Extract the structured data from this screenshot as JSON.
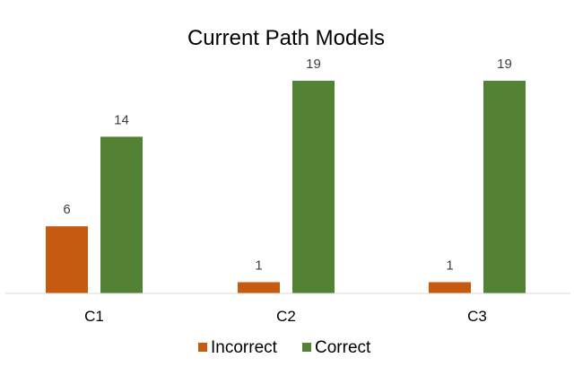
{
  "chart_data": {
    "type": "bar",
    "title": "Current Path Models",
    "xlabel": "",
    "ylabel": "",
    "categories": [
      "C1",
      "C2",
      "C3"
    ],
    "series": [
      {
        "name": "Incorrect",
        "color": "#C55A11",
        "values": [
          6,
          1,
          1
        ]
      },
      {
        "name": "Correct",
        "color": "#548235",
        "values": [
          14,
          19,
          19
        ]
      }
    ],
    "ylim": [
      0,
      20
    ],
    "grid": false,
    "legend": "bottom",
    "data_labels": true,
    "axis_color": "#D9D9D9"
  }
}
